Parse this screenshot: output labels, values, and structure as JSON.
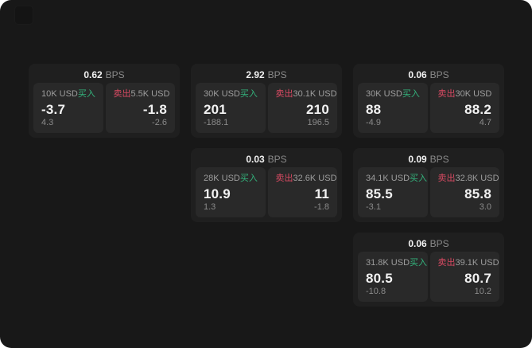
{
  "colors": {
    "surface_bg": "#181818",
    "card_bg": "#1f1f1f",
    "panel_bg": "#292929",
    "text_primary": "#f2f2f2",
    "text_secondary": "#9d9d9d",
    "text_muted": "#8a8a8a",
    "buy_green": "#33b37c",
    "sell_red": "#d84a62"
  },
  "cards": [
    {
      "bps_value": "0.62",
      "bps_unit": "BPS",
      "buy": {
        "amount": "10K USD",
        "side_label": "买入",
        "price": "-3.7",
        "delta": "4.3"
      },
      "sell": {
        "side_label": "卖出",
        "amount": "5.5K USD",
        "price": "-1.8",
        "delta": "-2.6"
      }
    },
    {
      "bps_value": "2.92",
      "bps_unit": "BPS",
      "buy": {
        "amount": "30K USD",
        "side_label": "买入",
        "price": "201",
        "delta": "-188.1"
      },
      "sell": {
        "side_label": "卖出",
        "amount": "30.1K USD",
        "price": "210",
        "delta": "196.5"
      }
    },
    {
      "bps_value": "0.06",
      "bps_unit": "BPS",
      "buy": {
        "amount": "30K USD",
        "side_label": "买入",
        "price": "88",
        "delta": "-4.9"
      },
      "sell": {
        "side_label": "卖出",
        "amount": "30K USD",
        "price": "88.2",
        "delta": "4.7"
      }
    },
    {
      "bps_value": "0.03",
      "bps_unit": "BPS",
      "buy": {
        "amount": "28K USD",
        "side_label": "买入",
        "price": "10.9",
        "delta": "1.3"
      },
      "sell": {
        "side_label": "卖出",
        "amount": "32.6K USD",
        "price": "11",
        "delta": "-1.8"
      }
    },
    {
      "bps_value": "0.09",
      "bps_unit": "BPS",
      "buy": {
        "amount": "34.1K USD",
        "side_label": "买入",
        "price": "85.5",
        "delta": "-3.1"
      },
      "sell": {
        "side_label": "卖出",
        "amount": "32.8K USD",
        "price": "85.8",
        "delta": "3.0"
      }
    },
    {
      "bps_value": "0.06",
      "bps_unit": "BPS",
      "buy": {
        "amount": "31.8K USD",
        "side_label": "买入",
        "price": "80.5",
        "delta": "-10.8"
      },
      "sell": {
        "side_label": "卖出",
        "amount": "39.1K USD",
        "price": "80.7",
        "delta": "10.2"
      }
    }
  ]
}
